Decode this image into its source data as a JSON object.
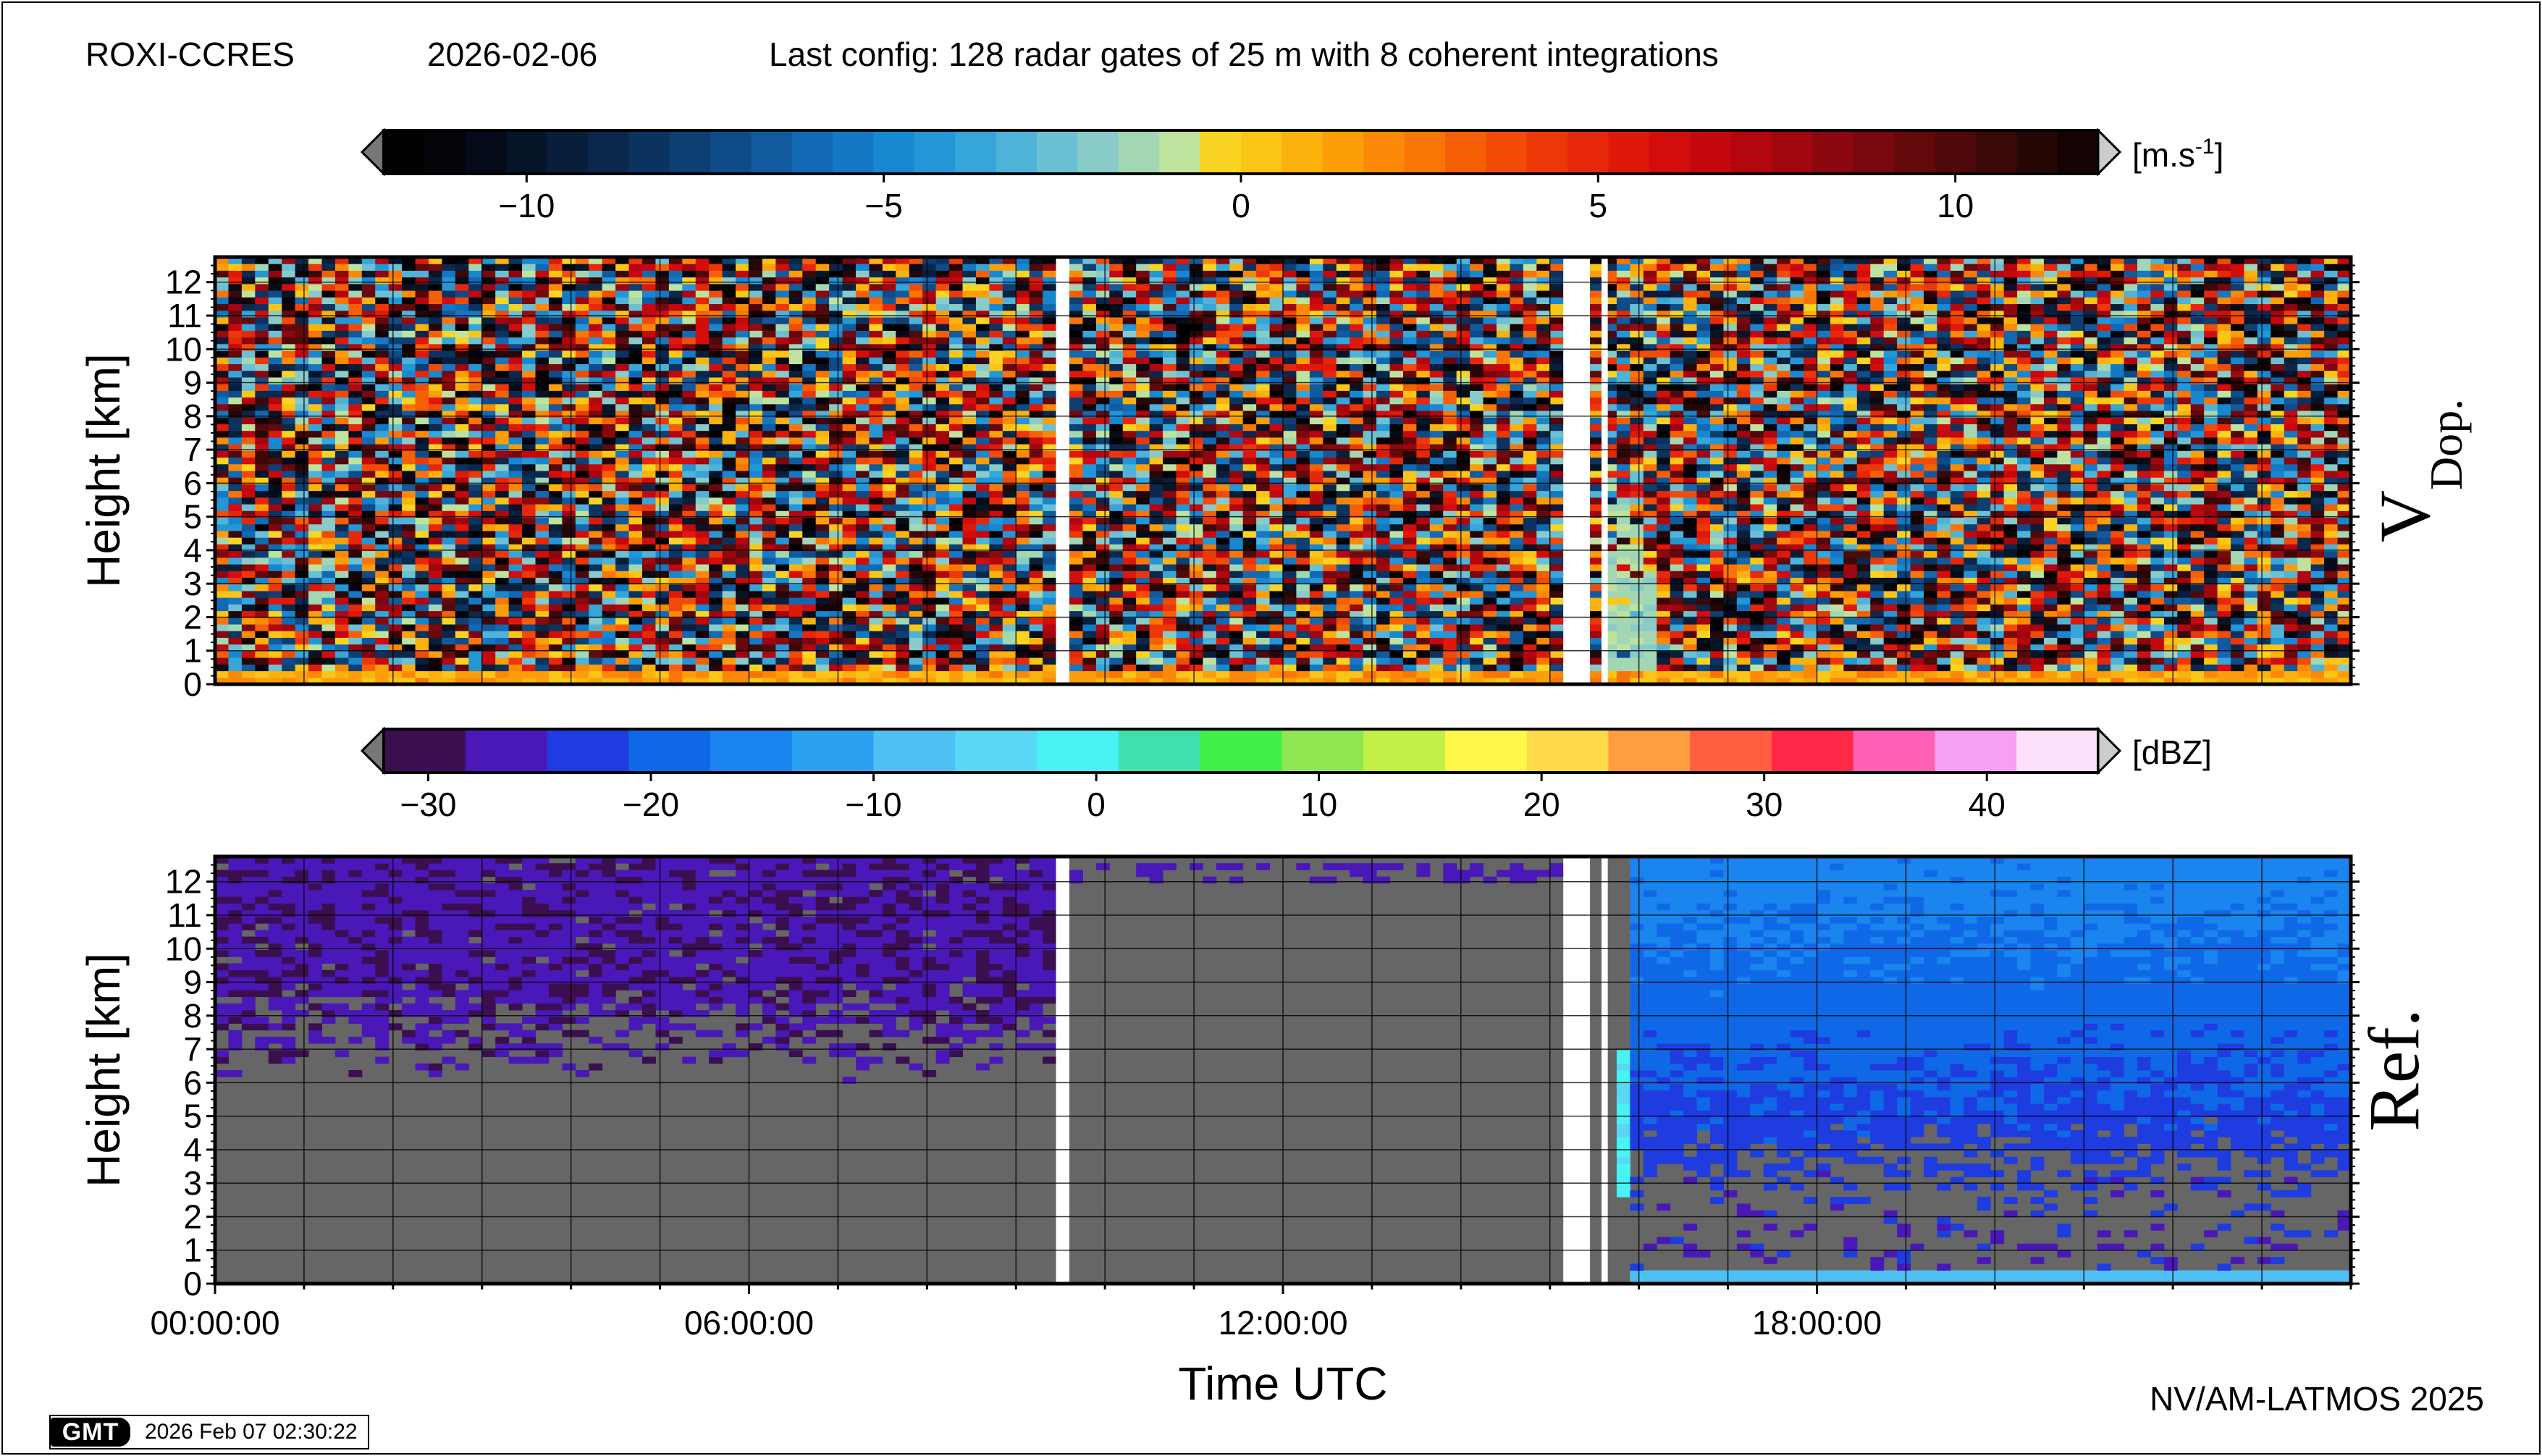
{
  "header": {
    "site": "ROXI-CCRES",
    "date": "2026-02-06",
    "config": "Last config: 128 radar gates of 25 m with 8 coherent integrations"
  },
  "footer": {
    "credit": "NV/AM-LATMOS 2025",
    "gmt_logo": "GMT",
    "timestamp": "2026 Feb 07 02:30:22"
  },
  "colors": {
    "missing_data": "#ffffff",
    "no_signal": "#666666",
    "grid": "#000000"
  },
  "colorbars": {
    "velocity": {
      "unit_base": "[m.s",
      "unit_exp": "-1",
      "unit_close": "]",
      "ticks": [
        "−10",
        "−5",
        "0",
        "5",
        "10"
      ],
      "tick_values": [
        -10,
        -5,
        0,
        5,
        10
      ],
      "range": [
        -12,
        12
      ],
      "colors": [
        "#000000",
        "#03040a",
        "#050b18",
        "#071428",
        "#091e3a",
        "#0b284c",
        "#0c335f",
        "#0d3f73",
        "#0f4b88",
        "#115a9e",
        "#1269b3",
        "#1478c4",
        "#1787d0",
        "#2396d6",
        "#36a5d9",
        "#4fb3d8",
        "#6cc0d4",
        "#88cbc9",
        "#a3d7b4",
        "#bde39f",
        "#f9d423",
        "#fbc516",
        "#fcb20c",
        "#fc9e08",
        "#fb8907",
        "#f97506",
        "#f56006",
        "#f14b07",
        "#ec3808",
        "#e72709",
        "#e0180a",
        "#d30c0c",
        "#c4080d",
        "#b3060e",
        "#a0060e",
        "#8c070e",
        "#78080d",
        "#63090c",
        "#4f090a",
        "#3b0808",
        "#270606",
        "#140303"
      ]
    },
    "reflectivity": {
      "unit": "[dBZ]",
      "ticks": [
        "−30",
        "−20",
        "−10",
        "0",
        "10",
        "20",
        "30",
        "40"
      ],
      "tick_values": [
        -30,
        -20,
        -10,
        0,
        10,
        20,
        30,
        40
      ],
      "range": [
        -32,
        45
      ],
      "colors": [
        "#3b0f4f",
        "#4a18b8",
        "#1e3ce0",
        "#0f69e6",
        "#1a84ef",
        "#2ba2f0",
        "#4fc0f3",
        "#5ad7f5",
        "#49f2f5",
        "#3fe0b0",
        "#3ff048",
        "#8fe650",
        "#c2f047",
        "#fff84a",
        "#ffd94a",
        "#ff9d40",
        "#ff5f40",
        "#ff2846",
        "#ff5fb4",
        "#f7a0f2",
        "#fde0fa"
      ]
    }
  },
  "chart_data": [
    {
      "type": "heatmap",
      "variable": "V_Dop.",
      "label_main": "V",
      "label_sub": "Dop.",
      "ylabel": "Height [km]",
      "ylim": [
        0,
        12.75
      ],
      "yticks": [
        0,
        1,
        2,
        3,
        4,
        5,
        6,
        7,
        8,
        9,
        10,
        11,
        12
      ],
      "x_range_hours": [
        0,
        24
      ],
      "unit": "m.s-1",
      "value_range": [
        -12,
        12
      ],
      "missing_data_hours": [
        [
          9.45,
          9.6
        ],
        [
          15.15,
          15.45
        ],
        [
          15.58,
          15.65
        ]
      ],
      "description_values": {
        "background_noise": "uniform random within [-12, 12] across all heights",
        "near_surface_layer_km": [
          0,
          0.35
        ],
        "near_surface_values": [
          0,
          2.5
        ],
        "convective_feature_hours": [
          15.6,
          16.2
        ],
        "convective_feature_top_km": 7.0,
        "convective_values": [
          -2,
          -1
        ]
      }
    },
    {
      "type": "heatmap",
      "variable": "Ref.",
      "label_main": "Ref.",
      "ylabel": "Height [km]",
      "xlabel": "Time UTC",
      "ylim": [
        0,
        12.75
      ],
      "yticks": [
        0,
        1,
        2,
        3,
        4,
        5,
        6,
        7,
        8,
        9,
        10,
        11,
        12
      ],
      "x_range_hours": [
        0,
        24
      ],
      "xticks": [
        "00:00:00",
        "06:00:00",
        "12:00:00",
        "18:00:00"
      ],
      "xtick_hours": [
        0,
        6,
        12,
        18
      ],
      "unit": "dBZ",
      "value_range": [
        -32,
        45
      ],
      "missing_data_hours": [
        [
          9.45,
          9.6
        ],
        [
          15.15,
          15.45
        ],
        [
          15.58,
          15.65
        ]
      ],
      "description_values": {
        "early_period_hours": [
          0,
          9.45
        ],
        "early_noise_dbz": [
          -30,
          -25
        ],
        "early_noise_lower_km": 6,
        "mid_period_hours": [
          9.6,
          15.15
        ],
        "mid_period_upper_band_km": [
          11.9,
          12.6
        ],
        "late_period_hours": [
          15.9,
          24
        ],
        "late_noise_dbz": [
          -26,
          -16
        ],
        "late_noise_lower_km": 2.5,
        "surface_layer_dbz": -8,
        "convective_feature_hours": [
          15.75,
          15.95
        ],
        "convective_feature_top_km": 7.0,
        "convective_dbz": [
          -5,
          2
        ]
      }
    }
  ]
}
